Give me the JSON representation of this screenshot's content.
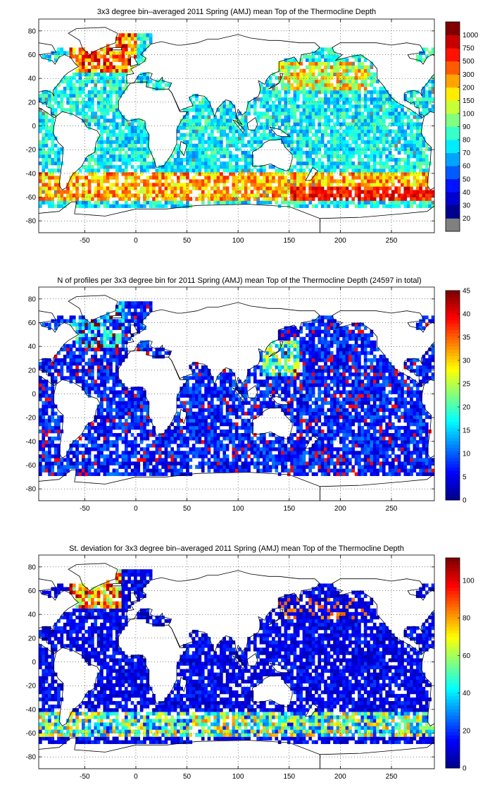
{
  "colors": {
    "jet": [
      "#00008f",
      "#0000ff",
      "#0080ff",
      "#00ffff",
      "#80ff80",
      "#ffff00",
      "#ff8000",
      "#ff0000",
      "#800000"
    ],
    "missing": "#808080",
    "land": "#ffffff",
    "coast": "#000000"
  },
  "map": {
    "xlim": [
      -95,
      292
    ],
    "ylim": [
      -90,
      90
    ],
    "xticks": [
      -50,
      0,
      50,
      100,
      150,
      200,
      250
    ],
    "yticks": [
      -80,
      -60,
      -40,
      -20,
      0,
      20,
      40,
      60,
      80
    ],
    "grid": "dotted"
  },
  "chart_data": [
    {
      "type": "heatmap",
      "title": "3x3 degree bin–averaged 2011 Spring (AMJ) mean Top of the Thermocline Depth",
      "xlabel": "",
      "ylabel": "",
      "colorbar_ticks": [
        "20",
        "30",
        "40",
        "50",
        "60",
        "70",
        "80",
        "90",
        "100",
        "150",
        "200",
        "300",
        "500",
        "750",
        "1000"
      ],
      "colorbar_scale": "categorical",
      "has_missing_class": true,
      "field": "depth"
    },
    {
      "type": "heatmap",
      "title": "N of profiles per 3x3 degree bin for 2011 Spring (AMJ) mean Top of the Thermocline Depth  (24597 in total)",
      "xlabel": "",
      "ylabel": "",
      "colorbar_ticks": [
        "0",
        "5",
        "10",
        "15",
        "20",
        "25",
        "30",
        "35",
        "40",
        "45"
      ],
      "colorbar_range": [
        0,
        45
      ],
      "colorbar_scale": "linear",
      "total_profiles": 24597,
      "field": "count"
    },
    {
      "type": "heatmap",
      "title": "St. deviation for 3x3 degree bin–averaged 2011 Spring (AMJ) mean Top of the Thermocline Depth",
      "xlabel": "",
      "ylabel": "",
      "colorbar_ticks": [
        "0",
        "20",
        "40",
        "60",
        "80",
        "100"
      ],
      "colorbar_range": [
        0,
        112
      ],
      "colorbar_scale": "linear",
      "field": "std"
    }
  ]
}
